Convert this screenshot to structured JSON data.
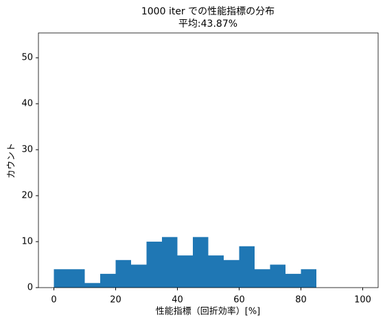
{
  "chart_data": {
    "type": "histogram",
    "title": "1000 iter での性能指標の分布",
    "subtitle": "平均:43.87%",
    "x_label": "性能指標（回折効率）[%]",
    "y_label": "カウント",
    "bins": [
      0,
      5,
      10,
      15,
      20,
      25,
      30,
      35,
      40,
      45,
      50,
      55,
      60,
      65,
      70,
      75,
      80,
      85
    ],
    "values": [
      4,
      4,
      1,
      3,
      6,
      5,
      10,
      11,
      7,
      11,
      7,
      6,
      9,
      4,
      5,
      3,
      4
    ],
    "color": "#1f77b4",
    "xlim": [
      -5,
      105
    ],
    "xticks": [
      0,
      20,
      40,
      60,
      80,
      100
    ],
    "ylim": [
      0,
      55.4
    ],
    "yticks": [
      0,
      10,
      20,
      30,
      40,
      50
    ]
  }
}
